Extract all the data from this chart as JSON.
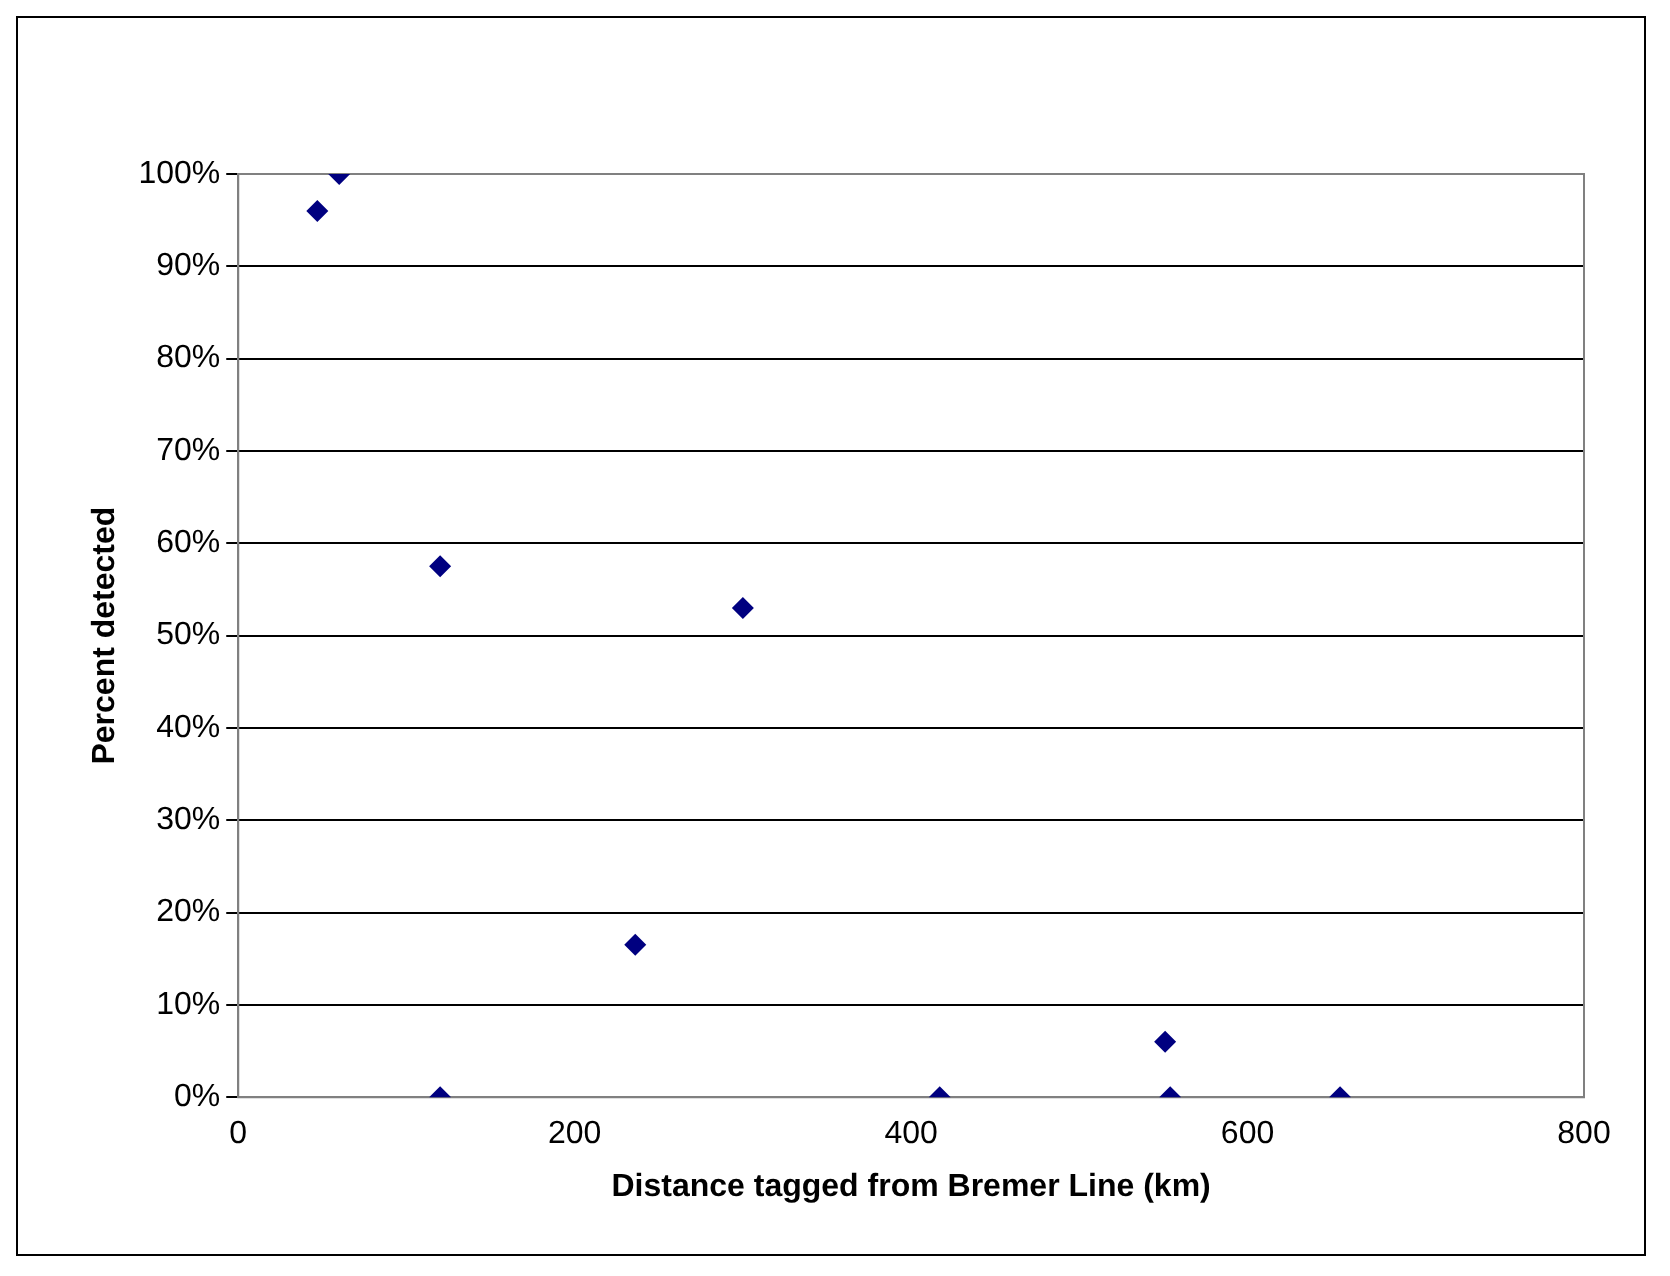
{
  "chart_data": {
    "type": "scatter",
    "xlabel": "Distance tagged from Bremer Line (km)",
    "ylabel": "Percent detected",
    "x": [
      47,
      60,
      120,
      120,
      236,
      300,
      417,
      551,
      554,
      655
    ],
    "series": [
      {
        "color": "#000080",
        "values": [
          96,
          100,
          57.5,
          0,
          16.5,
          53,
          0,
          6,
          0,
          0
        ]
      }
    ],
    "xlim": [
      0,
      800
    ],
    "xticks": [
      0,
      200,
      400,
      600,
      800
    ],
    "ylim": [
      0,
      100
    ],
    "yticks": [
      {
        "value": 0,
        "label": "0%"
      },
      {
        "value": 10,
        "label": "10%"
      },
      {
        "value": 20,
        "label": "20%"
      },
      {
        "value": 30,
        "label": "30%"
      },
      {
        "value": 40,
        "label": "40%"
      },
      {
        "value": 50,
        "label": "50%"
      },
      {
        "value": 60,
        "label": "60%"
      },
      {
        "value": 70,
        "label": "70%"
      },
      {
        "value": 80,
        "label": "80%"
      },
      {
        "value": 90,
        "label": "90%"
      },
      {
        "value": 100,
        "label": "100%"
      }
    ],
    "grid": "y",
    "marker": "diamond",
    "legend": false
  }
}
